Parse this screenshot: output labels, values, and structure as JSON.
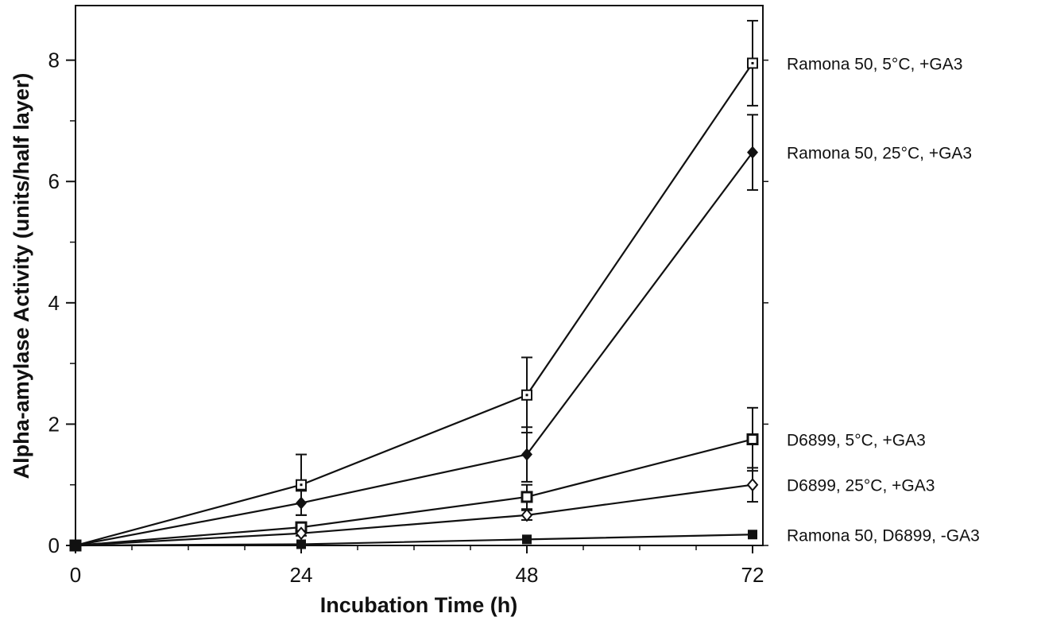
{
  "chart_data": {
    "type": "line",
    "title": "",
    "xlabel": "Incubation Time (h)",
    "ylabel": "Alpha-amylase Activity (units/half layer)",
    "x": [
      0,
      24,
      48,
      72
    ],
    "x_tick_labels": [
      "0",
      "24",
      "48",
      "72"
    ],
    "y_tick_labels": [
      "0",
      "2",
      "4",
      "6",
      "8"
    ],
    "xlim": [
      0,
      72
    ],
    "ylim": [
      0,
      8.9
    ],
    "grid": false,
    "legend": "labels at right end of each line",
    "series": [
      {
        "name": "Ramona 50, 5°C, +GA3",
        "values": [
          0,
          1.0,
          2.48,
          7.95
        ],
        "errors": [
          0,
          0.5,
          0.62,
          0.7
        ],
        "marker": "open-square"
      },
      {
        "name": "Ramona 50, 25°C, +GA3",
        "values": [
          0,
          0.7,
          1.5,
          6.48
        ],
        "errors": [
          0,
          0.2,
          0.45,
          0.62
        ],
        "marker": "filled-diamond"
      },
      {
        "name": "D6899, 5°C, +GA3",
        "values": [
          0,
          0.3,
          0.8,
          1.75
        ],
        "errors": [
          0,
          0.05,
          0.2,
          0.52
        ],
        "marker": "open-square-bold"
      },
      {
        "name": "D6899, 25°C, +GA3",
        "values": [
          0,
          0.2,
          0.5,
          1.0
        ],
        "errors": [
          0,
          0.04,
          0.08,
          0.28
        ],
        "marker": "open-diamond"
      },
      {
        "name": "Ramona 50, D6899, -GA3",
        "values": [
          0,
          0.02,
          0.1,
          0.18
        ],
        "errors": [
          0,
          0,
          0,
          0
        ],
        "marker": "filled-square"
      }
    ]
  }
}
